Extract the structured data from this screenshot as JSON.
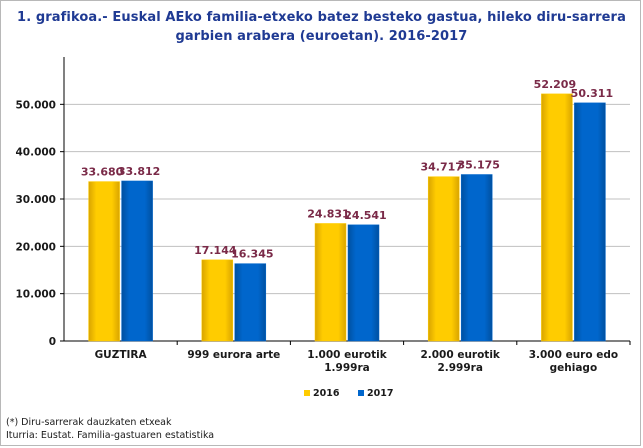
{
  "title_line1": "1. grafikoa.- Euskal AEko familia-etxeko batez besteko gastua, hileko diru-sarrera",
  "title_line2": "garbien arabera (euroetan). 2016-2017",
  "footnote1": "(*) Diru-sarrerak dauzkaten etxeak",
  "footnote2": "Iturria: Eustat. Familia-gastuaren estatistika",
  "colors": {
    "series_2016": "#ffcc00",
    "series_2016_dark": "#d9a400",
    "series_2017": "#0066cc",
    "series_2017_dark": "#0050a0",
    "value_label": "#7a2a48",
    "axis_text": "#1a1a1a",
    "gridline": "#c0c0c0"
  },
  "chart_data": {
    "type": "bar",
    "categories": [
      [
        "GUZTIRA"
      ],
      [
        "999 eurora arte"
      ],
      [
        "1.000 eurotik",
        "1.999ra"
      ],
      [
        "2.000 eurotik",
        "2.999ra"
      ],
      [
        "3.000 euro edo",
        "gehiago"
      ]
    ],
    "series": [
      {
        "name": "2016",
        "values": [
          33680,
          17144,
          24831,
          34717,
          52209
        ],
        "labels": [
          "33.680",
          "17.144",
          "24.831",
          "34.717",
          "52.209"
        ]
      },
      {
        "name": "2017",
        "values": [
          33812,
          16345,
          24541,
          35175,
          50311
        ],
        "labels": [
          "33.812",
          "16.345",
          "24.541",
          "35.175",
          "50.311"
        ]
      }
    ],
    "ylim": [
      0,
      60000
    ],
    "yticks": [
      0,
      10000,
      20000,
      30000,
      40000,
      50000
    ],
    "ytick_labels": [
      "0",
      "10.000",
      "20.000",
      "30.000",
      "40.000",
      "50.000"
    ],
    "grid": true,
    "legend_position": "bottom"
  }
}
